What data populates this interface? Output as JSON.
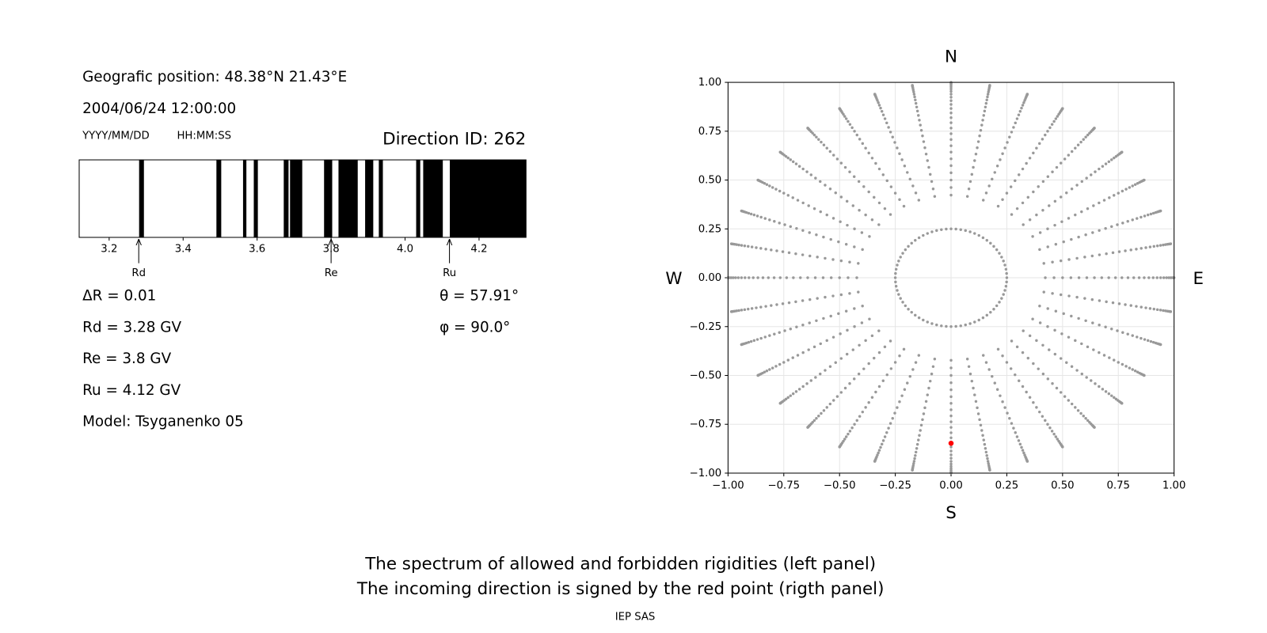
{
  "info": {
    "position": "Geografic position: 48.38°N 21.43°E",
    "datetime": "2004/06/24 12:00:00",
    "date_format": "YYYY/MM/DD",
    "time_format": "HH:MM:SS",
    "delta": "ΔR = 0.01",
    "rd": "Rd = 3.28 GV",
    "re": "Re = 3.8 GV",
    "ru": "Ru = 4.12 GV",
    "model": "Model: Tsyganenko 05",
    "theta": "θ = 57.91°",
    "phi": "φ = 90.0°"
  },
  "caption": [
    "The spectrum of allowed and forbidden rigidities (left panel)",
    "The incoming direction is signed by the red point (rigth panel)"
  ],
  "footer": "IEP SAS",
  "chart_data": [
    {
      "type": "spectrum",
      "title": "Direction ID: 262",
      "color": "#000000",
      "xlim": [
        3.119,
        4.327
      ],
      "xticks": [
        3.2,
        3.4,
        3.6,
        3.8,
        {
          "value": 4.0,
          "label": "4.0"
        },
        4.2
      ],
      "forbidden": [
        [
          3.281,
          3.294
        ],
        [
          3.49,
          3.503
        ],
        [
          3.562,
          3.571
        ],
        [
          3.591,
          3.602
        ],
        [
          3.672,
          3.685
        ],
        [
          3.689,
          3.722
        ],
        [
          3.781,
          3.803
        ],
        [
          3.82,
          3.872
        ],
        [
          3.892,
          3.914
        ],
        [
          3.929,
          3.94
        ],
        [
          4.03,
          4.041
        ],
        [
          4.049,
          4.102
        ],
        [
          4.121,
          4.327
        ]
      ],
      "annotations": [
        {
          "label": "Rd",
          "x": 3.28
        },
        {
          "label": "Re",
          "x": 3.8
        },
        {
          "label": "Ru",
          "x": 4.12
        }
      ]
    },
    {
      "type": "direction-map",
      "grid": true,
      "xlim": [
        -1,
        1
      ],
      "ylim": [
        -1,
        1
      ],
      "xticks": [
        {
          "value": -1,
          "label": "−1.00"
        },
        {
          "value": -0.75,
          "label": "−0.75"
        },
        {
          "value": -0.5,
          "label": "−0.50"
        },
        {
          "value": -0.25,
          "label": "−0.25"
        },
        {
          "value": 0,
          "label": "0.00"
        },
        {
          "value": 0.25,
          "label": "0.25"
        },
        {
          "value": 0.5,
          "label": "0.50"
        },
        {
          "value": 0.75,
          "label": "0.75"
        },
        {
          "value": 1,
          "label": "1.00"
        }
      ],
      "yticks": [
        {
          "value": -1,
          "label": "−1.00"
        },
        {
          "value": -0.75,
          "label": "−0.75"
        },
        {
          "value": -0.5,
          "label": "−0.50"
        },
        {
          "value": -0.25,
          "label": "−0.25"
        },
        {
          "value": 0,
          "label": "0.00"
        },
        {
          "value": 0.25,
          "label": "0.25"
        },
        {
          "value": 0.5,
          "label": "0.50"
        },
        {
          "value": 0.75,
          "label": "0.75"
        },
        {
          "value": 1,
          "label": "1.00"
        }
      ],
      "compass": {
        "top": "N",
        "bottom": "S",
        "left": "W",
        "right": "E"
      },
      "grid_points": [
        {
          "color": "#999999",
          "zenith": [
            25,
            27.5,
            30,
            32.5,
            35,
            37.5,
            40,
            42.5,
            45,
            47.5,
            50,
            52.5,
            55,
            57.5,
            60,
            62.5,
            65,
            67.5,
            70,
            72.5,
            75,
            77.5,
            80,
            82.5,
            85,
            87.5,
            90
          ],
          "azimuth": [
            0,
            10,
            20,
            30,
            40,
            50,
            60,
            70,
            80,
            90,
            100,
            110,
            120,
            130,
            140,
            150,
            160,
            170,
            180,
            190,
            200,
            210,
            220,
            230,
            240,
            250,
            260,
            270,
            280,
            290,
            300,
            310,
            320,
            330,
            340,
            350
          ]
        },
        {
          "color": "#999999",
          "zenith": [
            14.48
          ],
          "azimuth": [
            0,
            5,
            10,
            15,
            20,
            25,
            30,
            35,
            40,
            45,
            50,
            55,
            60,
            65,
            70,
            75,
            80,
            85,
            90,
            95,
            100,
            105,
            110,
            115,
            120,
            125,
            130,
            135,
            140,
            145,
            150,
            155,
            160,
            165,
            170,
            175,
            180,
            185,
            190,
            195,
            200,
            205,
            210,
            215,
            220,
            225,
            230,
            235,
            240,
            245,
            250,
            255,
            260,
            265,
            270,
            275,
            280,
            285,
            290,
            295,
            300,
            305,
            310,
            315,
            320,
            325,
            330,
            335,
            340,
            345,
            350,
            355
          ]
        }
      ],
      "direction": {
        "zenith": 57.91,
        "azimuth": 90,
        "color": "#ff0000"
      }
    }
  ]
}
